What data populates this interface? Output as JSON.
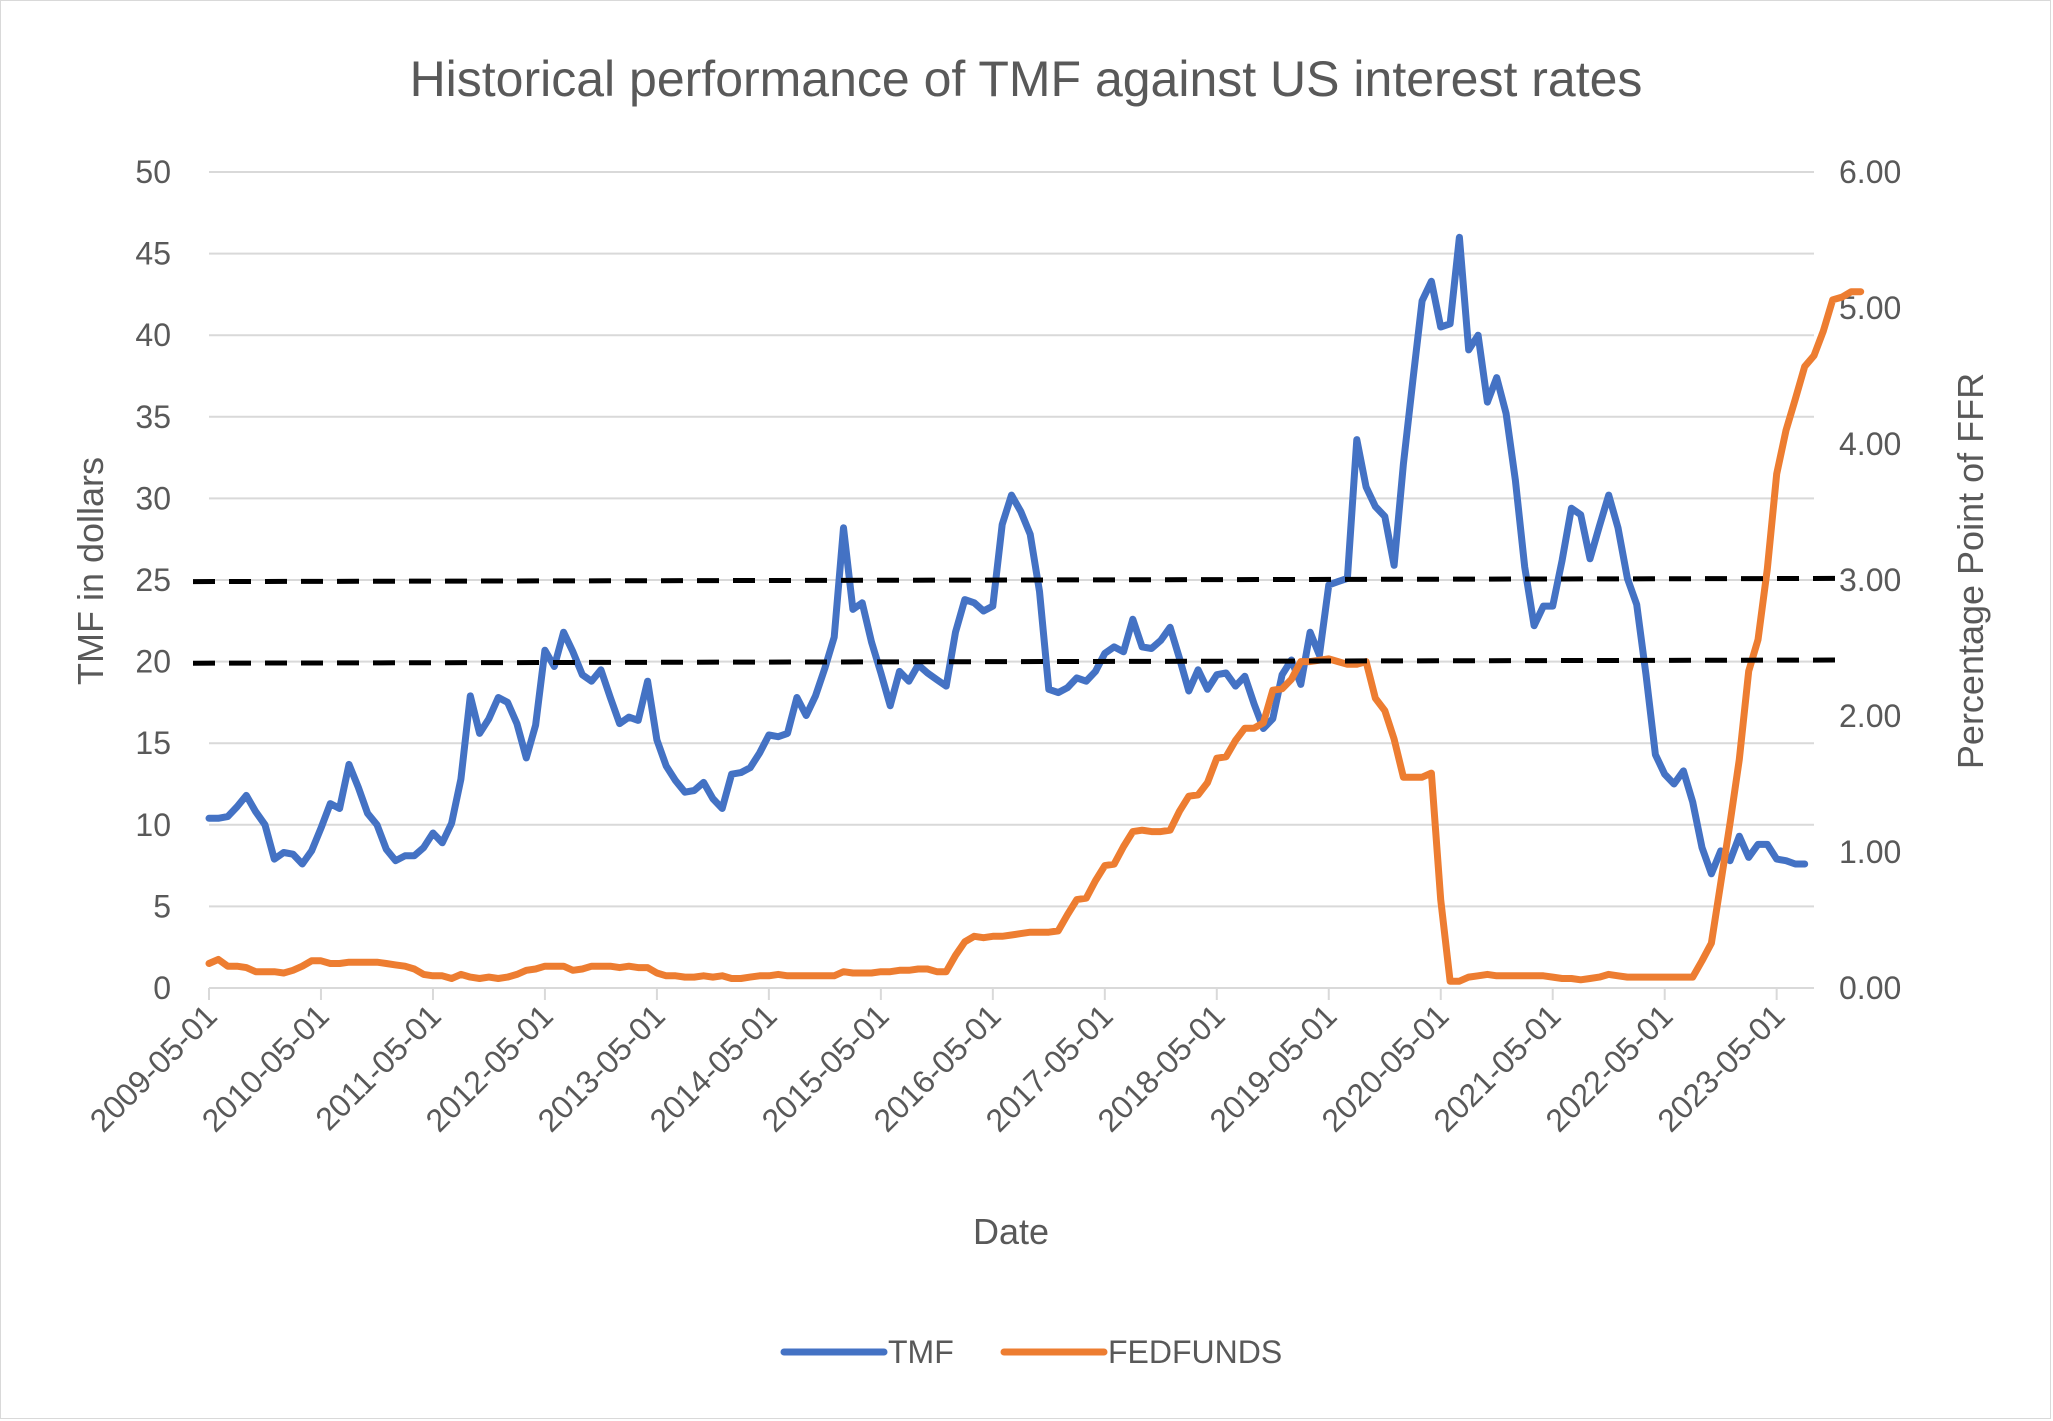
{
  "chart_data": {
    "type": "line",
    "title": "Historical performance of TMF against US interest rates",
    "xlabel": "Date",
    "ylabel": "TMF in dollars",
    "y2label": "Percentage Point of FFR",
    "ylim": [
      0,
      50
    ],
    "y2lim": [
      0,
      6
    ],
    "yticks": [
      "0",
      "5",
      "10",
      "15",
      "20",
      "25",
      "30",
      "35",
      "40",
      "45",
      "50"
    ],
    "y2ticks": [
      "0.00",
      "1.00",
      "2.00",
      "3.00",
      "4.00",
      "5.00",
      "6.00"
    ],
    "xticks": [
      "2009-05-01",
      "2010-05-01",
      "2011-05-01",
      "2012-05-01",
      "2013-05-01",
      "2014-05-01",
      "2015-05-01",
      "2016-05-01",
      "2017-05-01",
      "2018-05-01",
      "2019-05-01",
      "2020-05-01",
      "2021-05-01",
      "2022-05-01",
      "2023-05-01"
    ],
    "x_start": "2009-05-01",
    "grid": true,
    "legend_position": "bottom",
    "series": [
      {
        "name": "TMF",
        "axis": "left",
        "color": "#4472C4",
        "values": [
          10.4,
          10.4,
          10.5,
          11.1,
          11.8,
          10.8,
          10.0,
          7.9,
          8.3,
          8.2,
          7.6,
          8.4,
          9.8,
          11.3,
          11.0,
          13.7,
          12.3,
          10.7,
          10.0,
          8.5,
          7.8,
          8.1,
          8.1,
          8.6,
          9.5,
          8.9,
          10.1,
          12.8,
          17.9,
          15.6,
          16.5,
          17.8,
          17.5,
          16.2,
          14.1,
          16.1,
          20.7,
          19.7,
          21.8,
          20.6,
          19.2,
          18.8,
          19.5,
          17.8,
          16.2,
          16.6,
          16.4,
          18.8,
          15.2,
          13.6,
          12.7,
          12.0,
          12.1,
          12.6,
          11.6,
          11.0,
          13.1,
          13.2,
          13.5,
          14.4,
          15.5,
          15.4,
          15.6,
          17.8,
          16.7,
          17.9,
          19.6,
          21.5,
          28.2,
          23.2,
          23.6,
          21.2,
          19.3,
          17.3,
          19.4,
          18.8,
          19.8,
          19.3,
          18.9,
          18.5,
          21.8,
          23.8,
          23.6,
          23.1,
          23.4,
          28.4,
          30.2,
          29.2,
          27.8,
          24.3,
          18.3,
          18.1,
          18.4,
          19.0,
          18.8,
          19.4,
          20.5,
          20.9,
          20.6,
          22.6,
          20.9,
          20.8,
          21.3,
          22.1,
          20.2,
          18.2,
          19.5,
          18.3,
          19.2,
          19.3,
          18.5,
          19.1,
          17.4,
          15.9,
          16.5,
          19.2,
          20.1,
          18.6,
          21.8,
          20.4,
          24.7,
          24.9,
          25.1,
          33.6,
          30.7,
          29.5,
          28.9,
          25.9,
          32.1,
          37.2,
          42.1,
          43.3,
          40.5,
          40.7,
          46.0,
          39.1,
          40.0,
          35.9,
          37.4,
          35.2,
          31.1,
          25.8,
          22.2,
          23.4,
          23.4,
          26.2,
          29.4,
          29.0,
          26.3,
          28.3,
          30.2,
          28.2,
          25.1,
          23.5,
          19.2,
          14.3,
          13.1,
          12.5,
          13.3,
          11.4,
          8.6,
          7.0,
          8.4,
          7.8,
          9.3,
          8.0,
          8.8,
          8.8,
          7.9,
          7.8,
          7.6,
          7.6
        ]
      },
      {
        "name": "FEDFUNDS",
        "axis": "right",
        "color": "#ED7D31",
        "values": [
          0.18,
          0.21,
          0.16,
          0.16,
          0.15,
          0.12,
          0.12,
          0.12,
          0.11,
          0.13,
          0.16,
          0.2,
          0.2,
          0.18,
          0.18,
          0.19,
          0.19,
          0.19,
          0.19,
          0.18,
          0.17,
          0.16,
          0.14,
          0.1,
          0.09,
          0.09,
          0.07,
          0.1,
          0.08,
          0.07,
          0.08,
          0.07,
          0.08,
          0.1,
          0.13,
          0.14,
          0.16,
          0.16,
          0.16,
          0.13,
          0.14,
          0.16,
          0.16,
          0.16,
          0.15,
          0.16,
          0.15,
          0.15,
          0.11,
          0.09,
          0.09,
          0.08,
          0.08,
          0.09,
          0.08,
          0.09,
          0.07,
          0.07,
          0.08,
          0.09,
          0.09,
          0.1,
          0.09,
          0.09,
          0.09,
          0.09,
          0.09,
          0.09,
          0.12,
          0.11,
          0.11,
          0.11,
          0.12,
          0.12,
          0.13,
          0.13,
          0.14,
          0.14,
          0.12,
          0.12,
          0.24,
          0.34,
          0.38,
          0.37,
          0.38,
          0.38,
          0.39,
          0.4,
          0.41,
          0.41,
          0.41,
          0.42,
          0.54,
          0.65,
          0.66,
          0.79,
          0.9,
          0.91,
          1.04,
          1.15,
          1.16,
          1.15,
          1.15,
          1.16,
          1.3,
          1.41,
          1.42,
          1.51,
          1.69,
          1.7,
          1.82,
          1.91,
          1.91,
          1.95,
          2.19,
          2.2,
          2.27,
          2.4,
          2.4,
          2.41,
          2.42,
          2.4,
          2.38,
          2.38,
          2.4,
          2.13,
          2.04,
          1.83,
          1.55,
          1.55,
          1.55,
          1.58,
          0.65,
          0.05,
          0.05,
          0.08,
          0.09,
          0.1,
          0.09,
          0.09,
          0.09,
          0.09,
          0.09,
          0.09,
          0.08,
          0.07,
          0.07,
          0.06,
          0.07,
          0.08,
          0.1,
          0.09,
          0.08,
          0.08,
          0.08,
          0.08,
          0.08,
          0.08,
          0.08,
          0.08,
          0.2,
          0.33,
          0.77,
          1.21,
          1.68,
          2.33,
          2.56,
          3.08,
          3.78,
          4.1,
          4.33,
          4.57,
          4.65,
          4.83,
          5.06,
          5.08,
          5.12,
          5.12
        ]
      },
      {
        "name": "",
        "axis": "left",
        "color": "#000000",
        "style": "dashed",
        "x_from": "2009-05-01",
        "x_to": "2023-10-01",
        "values": [
          24.9,
          25.1
        ]
      },
      {
        "name": "",
        "axis": "left",
        "color": "#000000",
        "style": "dashed",
        "x_from": "2009-05-01",
        "x_to": "2023-10-01",
        "values": [
          19.9,
          20.1
        ]
      }
    ]
  }
}
